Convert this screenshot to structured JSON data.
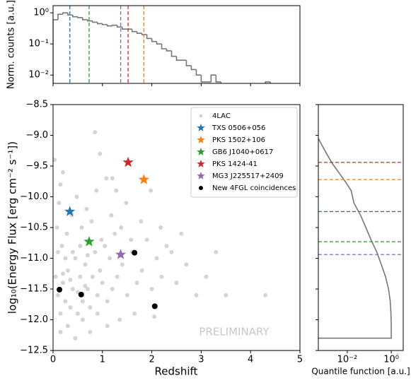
{
  "chart_data": [
    {
      "type": "histogram",
      "ylabel": "Norm. counts [a.u.]",
      "log_y": true,
      "color": "#777777",
      "bins": [
        0,
        0.1,
        0.2,
        0.3,
        0.4,
        0.5,
        0.6,
        0.7,
        0.8,
        0.9,
        1.0,
        1.1,
        1.2,
        1.3,
        1.4,
        1.5,
        1.6,
        1.7,
        1.8,
        1.9,
        2.0,
        2.1,
        2.2,
        2.3,
        2.4,
        2.5,
        2.6,
        2.7,
        2.8,
        2.9,
        3.0,
        3.1,
        3.2,
        3.3,
        3.4,
        3.5,
        3.6,
        3.7,
        3.8,
        3.9,
        4.0,
        4.1,
        4.2,
        4.3,
        4.4,
        4.5
      ],
      "counts": [
        0.6,
        0.9,
        1.0,
        0.85,
        0.75,
        0.7,
        0.6,
        0.55,
        0.5,
        0.45,
        0.42,
        0.38,
        0.4,
        0.35,
        0.3,
        0.3,
        0.25,
        0.22,
        0.2,
        0.15,
        0.12,
        0.1,
        0.07,
        0.06,
        0.04,
        0.03,
        0.03,
        0.02,
        0.015,
        0.01,
        0.006,
        0.006,
        0.01,
        0.006,
        0,
        0,
        0,
        0,
        0,
        0,
        0,
        0,
        0,
        0.006,
        0
      ],
      "xlim": [
        0,
        5
      ],
      "xticks": [
        0,
        1,
        2,
        3,
        4,
        5
      ],
      "ylim": [
        0.0054,
        1.7
      ],
      "yticks": [
        {
          "value": 1,
          "label": "10⁰"
        },
        {
          "value": 0.1,
          "label": "10⁻¹"
        },
        {
          "value": 0.01,
          "label": "10⁻²"
        }
      ]
    },
    {
      "type": "scatter",
      "xlabel": "Redshift",
      "ylabel": "log₁₀(Energy Flux [erg cm⁻² s⁻¹])",
      "annotation": "PRELIMINARY",
      "xlim": [
        0,
        5
      ],
      "xticks": [
        0,
        1,
        2,
        3,
        4,
        5
      ],
      "ylim": [
        -12.5,
        -8.5
      ],
      "yticks": [
        {
          "value": -8.5,
          "label": "−8.5"
        },
        {
          "value": -9.0,
          "label": "−9.0"
        },
        {
          "value": -9.5,
          "label": "−9.5"
        },
        {
          "value": -10.0,
          "label": "−10.0"
        },
        {
          "value": -10.5,
          "label": "−10.5"
        },
        {
          "value": -11.0,
          "label": "−11.0"
        },
        {
          "value": -11.5,
          "label": "−11.5"
        },
        {
          "value": -12.0,
          "label": "−12.0"
        },
        {
          "value": -12.5,
          "label": "−12.5"
        }
      ],
      "legend": "upper right",
      "series": [
        {
          "name": "4LAC",
          "color": "#aaaaaa",
          "marker": "dot",
          "x": [
            0.1,
            0.15,
            0.2,
            0.25,
            0.3,
            0.35,
            0.4,
            0.45,
            0.5,
            0.55,
            0.6,
            0.65,
            0.7,
            0.75,
            0.8,
            0.85,
            0.9,
            0.95,
            1.0,
            1.05,
            1.1,
            1.15,
            1.2,
            1.25,
            1.3,
            1.4,
            1.5,
            1.6,
            1.7,
            1.8,
            1.9,
            2.0,
            2.1,
            2.2,
            2.3,
            2.5,
            2.7,
            2.9,
            3.1,
            3.5,
            4.3,
            0.05,
            0.08,
            0.12,
            0.2,
            0.03,
            0.18,
            0.28,
            0.38,
            0.48,
            0.58,
            0.68,
            0.78,
            0.88,
            0.98,
            1.08,
            1.18,
            0.85,
            1.28,
            1.38,
            1.48,
            1.58,
            1.78,
            1.98,
            2.18,
            2.4,
            0.15,
            0.3,
            0.45,
            0.6,
            0.75,
            0.9,
            1.1,
            0.25,
            0.4,
            0.55,
            0.7,
            0.35,
            0.5,
            0.65,
            0.2,
            0.1,
            2.6,
            3.3,
            1.35,
            1.65,
            2.05,
            0.95,
            1.2,
            0.15
          ],
          "y": [
            -11.6,
            -11.9,
            -11.4,
            -11.7,
            -11.2,
            -11.8,
            -11.5,
            -11.0,
            -11.9,
            -11.3,
            -11.7,
            -11.1,
            -11.5,
            -11.8,
            -11.3,
            -10.9,
            -11.6,
            -11.2,
            -11.4,
            -10.8,
            -11.7,
            -11.0,
            -11.5,
            -10.6,
            -11.3,
            -11.1,
            -11.6,
            -10.9,
            -11.4,
            -11.2,
            -10.7,
            -11.5,
            -11.0,
            -11.3,
            -10.8,
            -11.4,
            -11.1,
            -11.6,
            -11.3,
            -11.6,
            -11.6,
            -11.3,
            -10.5,
            -10.1,
            -9.6,
            -9.4,
            -10.8,
            -10.6,
            -10.3,
            -10.0,
            -10.5,
            -10.2,
            -10.4,
            -9.9,
            -10.7,
            -9.7,
            -10.3,
            -8.95,
            -9.9,
            -10.5,
            -10.1,
            -10.7,
            -10.4,
            -9.9,
            -10.5,
            -10.9,
            -12.2,
            -12.1,
            -12.3,
            -12.0,
            -12.2,
            -11.9,
            -12.1,
            -11.0,
            -10.9,
            -10.8,
            -10.95,
            -11.35,
            -11.55,
            -11.45,
            -11.25,
            -10.9,
            -10.6,
            -10.9,
            -12.0,
            -11.9,
            -11.95,
            -9.3,
            -9.7,
            -9.8
          ]
        },
        {
          "name": "TXS 0506+056",
          "color": "#1f77b4",
          "marker": "star",
          "x": [
            0.34
          ],
          "y": [
            -10.24
          ]
        },
        {
          "name": "PKS 1502+106",
          "color": "#ff7f0e",
          "marker": "star",
          "x": [
            1.84
          ],
          "y": [
            -9.72
          ]
        },
        {
          "name": "GB6 J1040+0617",
          "color": "#2ca02c",
          "marker": "star",
          "x": [
            0.73
          ],
          "y": [
            -10.73
          ]
        },
        {
          "name": "PKS 1424-41",
          "color": "#d62728",
          "marker": "star",
          "x": [
            1.52
          ],
          "y": [
            -9.44
          ]
        },
        {
          "name": "MG3 J225517+2409",
          "color": "#9467bd",
          "marker": "star",
          "x": [
            1.37
          ],
          "y": [
            -10.94
          ]
        },
        {
          "name": "New 4FGL coincidences",
          "color": "#000000",
          "marker": "dot",
          "x": [
            0.13,
            0.57,
            1.65,
            2.06
          ],
          "y": [
            -11.51,
            -11.59,
            -10.91,
            -11.78
          ]
        }
      ]
    },
    {
      "type": "line",
      "xlabel": "Quantile function [a.u.]",
      "log_x": true,
      "color": "#777777",
      "xlim": [
        0.00048,
        3.5
      ],
      "xticks": [
        {
          "value": 0.01,
          "label": "10⁻²"
        },
        {
          "value": 1,
          "label": "10⁰"
        }
      ],
      "ylim": [
        -12.5,
        -8.5
      ],
      "x": [
        0.00048,
        0.0008,
        0.002,
        0.004,
        0.008,
        0.015,
        0.02,
        0.04,
        0.07,
        0.12,
        0.22,
        0.35,
        0.55,
        0.75,
        0.9,
        0.97,
        1.0,
        1.0,
        0.00048
      ],
      "y": [
        -9.05,
        -9.2,
        -9.45,
        -9.6,
        -9.75,
        -9.9,
        -10.1,
        -10.3,
        -10.5,
        -10.7,
        -10.9,
        -11.1,
        -11.3,
        -11.5,
        -11.7,
        -11.9,
        -12.1,
        -12.3,
        -12.3
      ]
    }
  ]
}
